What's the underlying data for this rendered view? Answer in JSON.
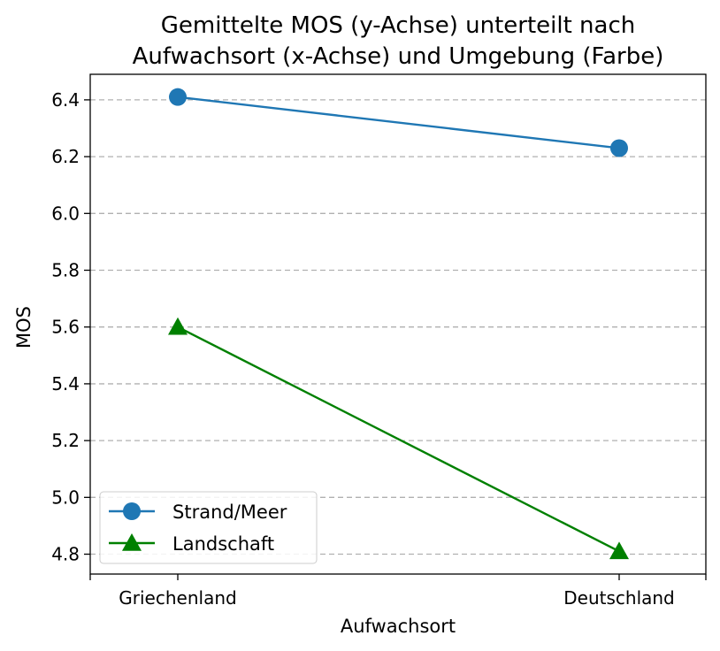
{
  "chart_data": {
    "type": "line",
    "title": [
      "Gemittelte MOS (y-Achse) unterteilt nach",
      "Aufwachsort (x-Achse) und Umgebung (Farbe)"
    ],
    "xlabel": "Aufwachsort",
    "ylabel": "MOS",
    "categories": [
      "Griechenland",
      "Deutschland"
    ],
    "ylim": [
      4.73,
      6.49
    ],
    "yticks": [
      "4.8",
      "5.0",
      "5.2",
      "5.4",
      "5.6",
      "5.8",
      "6.0",
      "6.2",
      "6.4"
    ],
    "grid": "y-dashed",
    "legend_position": "lower-left",
    "series": [
      {
        "name": "Strand/Meer",
        "values": [
          6.41,
          6.23
        ],
        "color": "#1f77b4",
        "marker": "circle"
      },
      {
        "name": "Landschaft",
        "values": [
          5.6,
          4.81
        ],
        "color": "#008000",
        "marker": "triangle"
      }
    ]
  }
}
